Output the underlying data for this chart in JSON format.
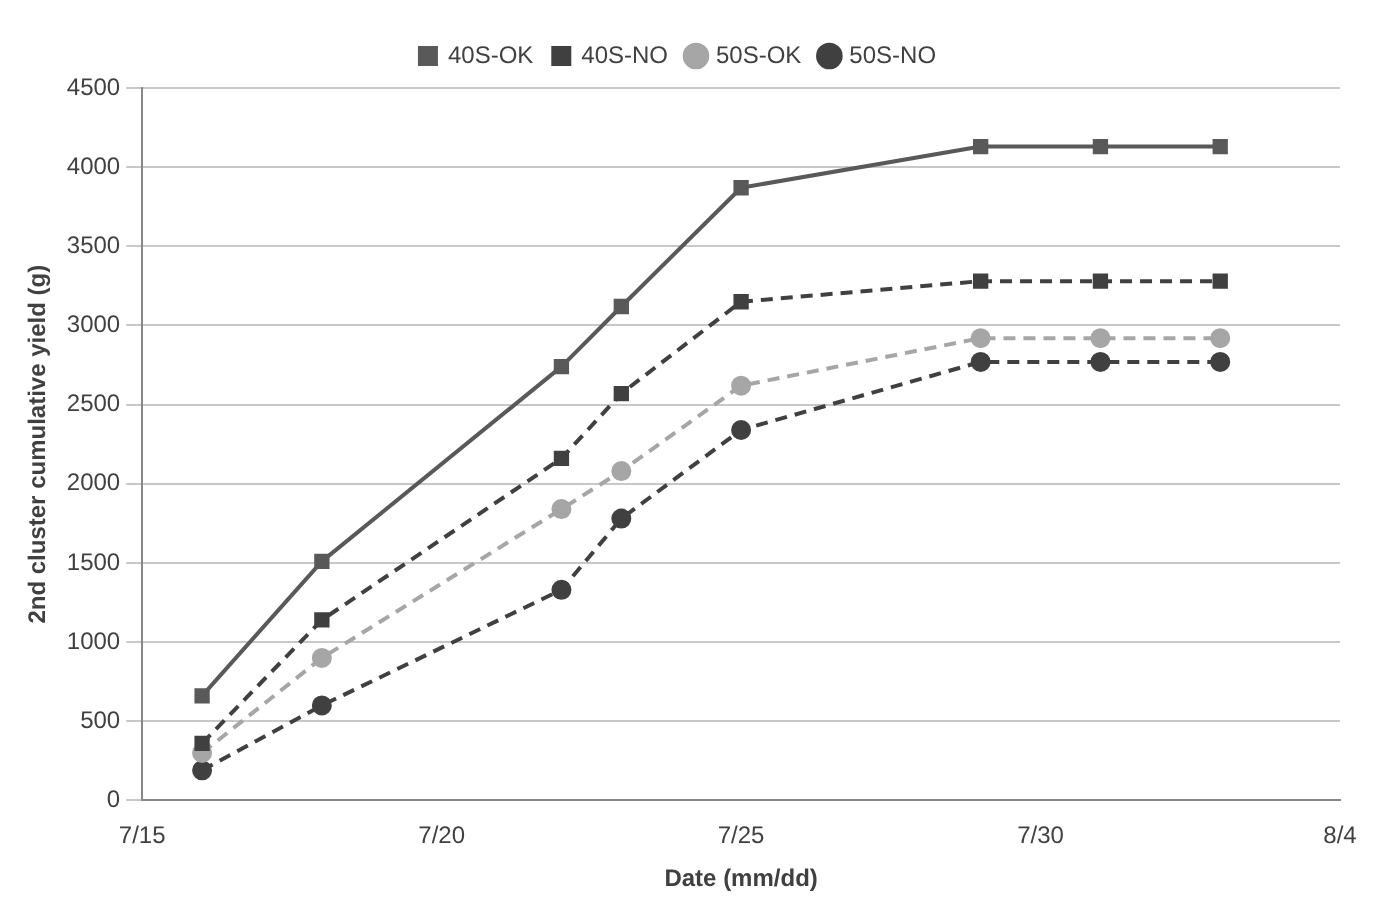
{
  "chart_data": {
    "type": "line",
    "xlabel": "Date (mm/dd)",
    "ylabel": "2nd cluster cumulative yield (g)",
    "x": [
      "--07-16",
      "--07-18",
      "--07-22",
      "--07-23",
      "--07-25",
      "--07-29",
      "--07-31",
      "--08-02"
    ],
    "series": [
      {
        "name": "40S-OK",
        "color": "#595959",
        "marker": "square",
        "line_style": "solid",
        "values": [
          660,
          1510,
          2740,
          3120,
          3870,
          4130,
          4130,
          4130
        ]
      },
      {
        "name": "40S-NO",
        "color": "#404040",
        "marker": "square",
        "line_style": "dashed",
        "values": [
          360,
          1140,
          2160,
          2570,
          3150,
          3280,
          3280,
          3280
        ]
      },
      {
        "name": "50S-OK",
        "color": "#a6a6a6",
        "marker": "circle",
        "line_style": "dashed",
        "values": [
          300,
          900,
          1840,
          2080,
          2620,
          2920,
          2920,
          2920
        ]
      },
      {
        "name": "50S-NO",
        "color": "#404040",
        "marker": "circle",
        "line_style": "dashed",
        "values": [
          190,
          600,
          1330,
          1780,
          2340,
          2770,
          2770,
          2770
        ]
      }
    ],
    "xlim": [
      "--07-15",
      "--08-04"
    ],
    "xticks": [
      {
        "value": "--07-15",
        "label": "7/15"
      },
      {
        "value": "--07-20",
        "label": "7/20"
      },
      {
        "value": "--07-25",
        "label": "7/25"
      },
      {
        "value": "--07-30",
        "label": "7/30"
      },
      {
        "value": "--08-04",
        "label": "8/4"
      }
    ],
    "ylim": [
      0,
      4500
    ],
    "yticks": [
      0,
      500,
      1000,
      1500,
      2000,
      2500,
      3000,
      3500,
      4000,
      4500
    ],
    "grid": "y",
    "legend": "top"
  }
}
